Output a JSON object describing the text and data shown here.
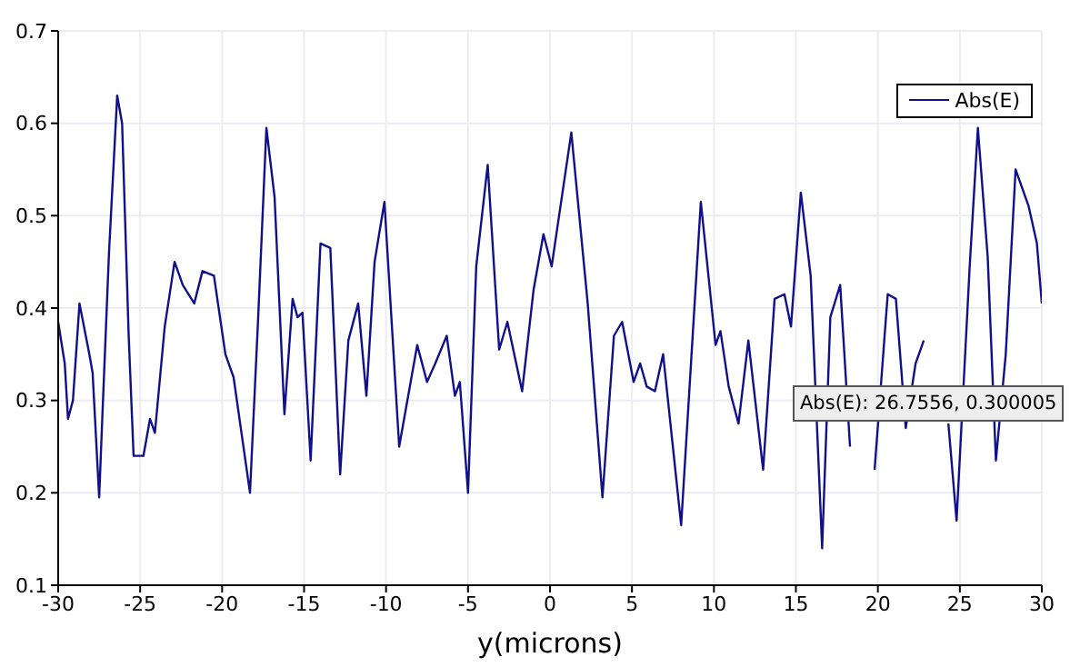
{
  "chart_data": {
    "type": "line",
    "xlabel": "y(microns)",
    "xlim": [
      -30,
      30
    ],
    "xticks": [
      -30,
      -25,
      -20,
      -15,
      -10,
      -5,
      0,
      5,
      10,
      15,
      20,
      25,
      30
    ],
    "ylim": [
      0.1,
      0.7
    ],
    "yticks": [
      0.1,
      0.2,
      0.3,
      0.4,
      0.5,
      0.6,
      0.7
    ],
    "grid": true,
    "legend": "top right",
    "marker": "none",
    "line_style": "solid",
    "annotations": [
      "Abs(E): 26.7556, 0.300005"
    ],
    "x": [
      -30,
      -29.6,
      -29.4,
      -29.1,
      -28.7,
      -28.1,
      -27.9,
      -27.5,
      -27.3,
      -26.9,
      -26.4,
      -26.1,
      -25.7,
      -25.4,
      -24.8,
      -24.4,
      -24.1,
      -23.5,
      -22.9,
      -22.4,
      -21.7,
      -21.2,
      -20.5,
      -19.8,
      -19.3,
      -18.3,
      -17.8,
      -17.3,
      -16.8,
      -16.2,
      -15.7,
      -15.4,
      -15.1,
      -14.6,
      -14.0,
      -13.4,
      -12.8,
      -12.3,
      -11.7,
      -11.2,
      -10.7,
      -10.1,
      -9.2,
      -8.1,
      -7.5,
      -7.0,
      -6.3,
      -5.8,
      -5.5,
      -5.0,
      -4.5,
      -3.8,
      -3.1,
      -2.6,
      -1.7,
      -1.0,
      -0.4,
      0.1,
      1.3,
      2.3,
      3.2,
      3.9,
      4.4,
      5.1,
      5.5,
      5.9,
      6.4,
      6.9,
      8.0,
      9.2,
      10.1,
      10.4,
      10.9,
      11.5,
      12.1,
      13.0,
      13.7,
      14.3,
      14.7,
      15.3,
      15.9,
      16.6,
      17.1,
      17.7,
      18.3,
      18.8,
      19.8,
      20.6,
      21.1,
      21.7,
      22.3,
      22.8,
      23.3,
      24.3,
      24.8,
      25.6,
      26.1,
      26.7,
      27.2,
      27.8,
      28.4,
      29.2,
      29.7,
      30
    ],
    "series": [
      {
        "name": "Abs(E)",
        "color": "#10108a",
        "values": [
          0.385,
          0.34,
          0.28,
          0.3,
          0.405,
          0.35,
          0.33,
          0.195,
          0.285,
          0.46,
          0.63,
          0.6,
          0.37,
          0.24,
          0.24,
          0.28,
          0.265,
          0.38,
          0.45,
          0.425,
          0.405,
          0.44,
          0.435,
          0.35,
          0.325,
          0.2,
          0.39,
          0.595,
          0.52,
          0.285,
          0.41,
          0.39,
          0.395,
          0.235,
          0.47,
          0.465,
          0.22,
          0.365,
          0.405,
          0.305,
          0.45,
          0.515,
          0.25,
          0.36,
          0.32,
          0.34,
          0.37,
          0.305,
          0.32,
          0.2,
          0.445,
          0.555,
          0.355,
          0.385,
          0.31,
          0.42,
          0.48,
          0.445,
          0.59,
          0.405,
          0.195,
          0.37,
          0.385,
          0.32,
          0.34,
          0.315,
          0.31,
          0.35,
          0.165,
          0.515,
          0.36,
          0.375,
          0.315,
          0.275,
          0.365,
          0.225,
          0.41,
          0.415,
          0.38,
          0.525,
          0.435,
          0.14,
          0.39,
          0.425,
          0.25,
          null,
          0.225,
          0.415,
          0.41,
          0.27,
          0.34,
          0.365,
          null,
          0.275,
          0.17,
          0.445,
          0.595,
          0.455,
          0.235,
          0.35,
          0.55,
          0.51,
          0.47,
          0.405
        ]
      }
    ]
  }
}
